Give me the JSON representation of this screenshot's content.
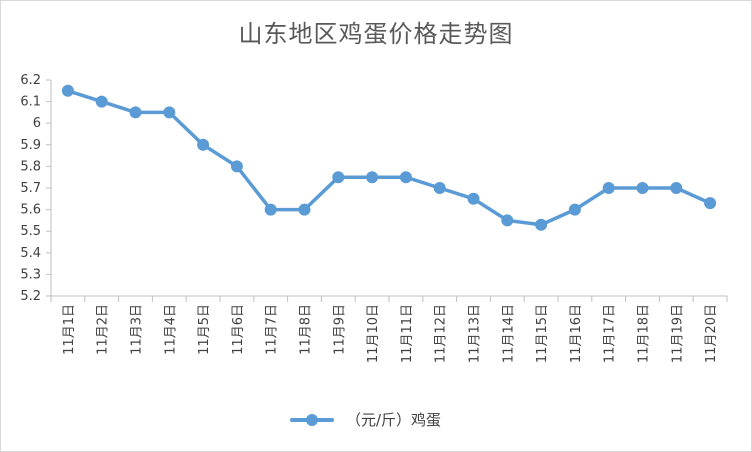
{
  "chart_data": {
    "type": "line",
    "title": "山东地区鸡蛋价格走势图",
    "categories": [
      "11月1日",
      "11月2日",
      "11月3日",
      "11月4日",
      "11月5日",
      "11月6日",
      "11月7日",
      "11月8日",
      "11月9日",
      "11月10日",
      "11月11日",
      "11月12日",
      "11月13日",
      "11月14日",
      "11月15日",
      "11月16日",
      "11月17日",
      "11月18日",
      "11月19日",
      "11月20日"
    ],
    "series": [
      {
        "name": "（元/斤）鸡蛋",
        "values": [
          6.15,
          6.1,
          6.05,
          6.05,
          5.9,
          5.8,
          5.6,
          5.6,
          5.75,
          5.75,
          5.75,
          5.7,
          5.65,
          5.55,
          5.53,
          5.6,
          5.7,
          5.7,
          5.7,
          5.63
        ]
      }
    ],
    "yticks": [
      "5.2",
      "5.3",
      "5.4",
      "5.5",
      "5.6",
      "5.7",
      "5.8",
      "5.9",
      "6",
      "6.1",
      "6.2"
    ],
    "ylim": [
      5.2,
      6.2
    ],
    "grid": false,
    "legend": "bottom",
    "color": "#5b9bd5"
  }
}
